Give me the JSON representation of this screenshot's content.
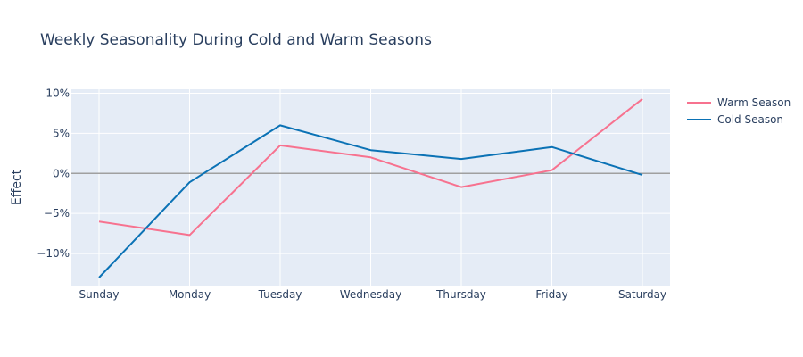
{
  "chart_data": {
    "type": "line",
    "title": "Weekly Seasonality During Cold and Warm Seasons",
    "xlabel": "",
    "ylabel": "Effect",
    "categories": [
      "Sunday",
      "Monday",
      "Tuesday",
      "Wednesday",
      "Thursday",
      "Friday",
      "Saturday"
    ],
    "series": [
      {
        "name": "Warm Season",
        "color": "#f7728f",
        "values": [
          -6.0,
          -7.7,
          3.5,
          2.0,
          -1.7,
          0.4,
          9.3
        ]
      },
      {
        "name": "Cold Season",
        "color": "#0b72b5",
        "values": [
          -13.0,
          -1.1,
          6.0,
          2.9,
          1.8,
          3.3,
          -0.2
        ]
      }
    ],
    "ylim": [
      -14,
      10.5
    ],
    "yticks": [
      10,
      5,
      0,
      -5,
      -10
    ],
    "ytick_labels": [
      "10%",
      "5%",
      "0%",
      "−5%",
      "−10%"
    ],
    "zero_line": true,
    "grid": true,
    "legend_position": "top-right",
    "plot_background": "#e5ecf6",
    "zero_line_color": "#a0a0a0"
  }
}
